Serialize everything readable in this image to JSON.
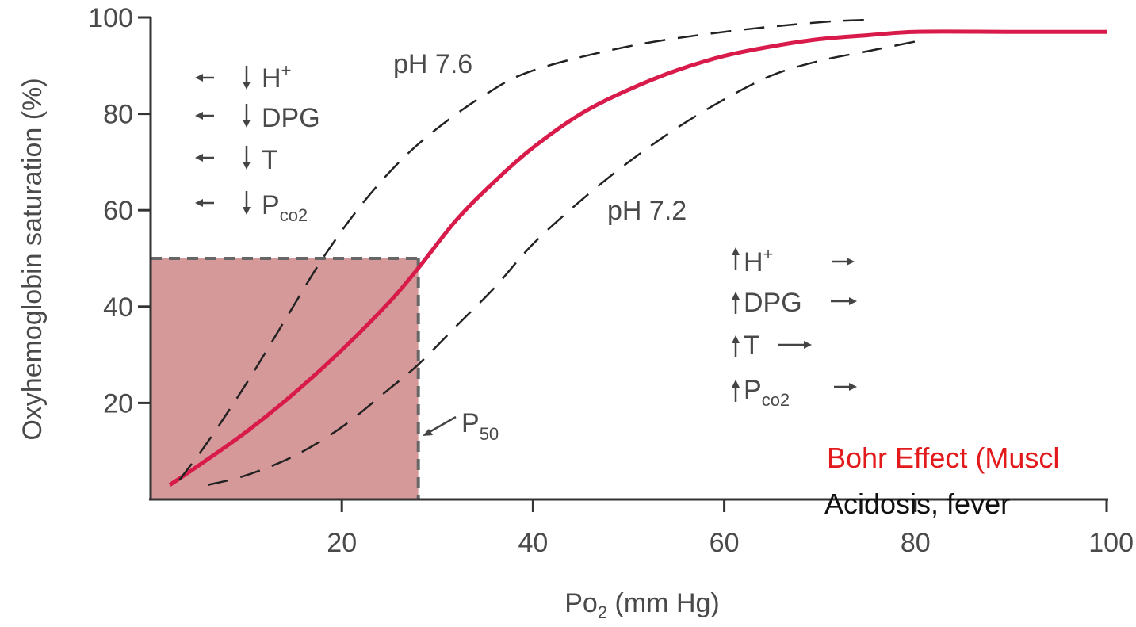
{
  "chart_data": {
    "type": "line",
    "title": "",
    "xlabel": "Po",
    "xlabel_sub": "2",
    "xlabel_suffix": " (mm Hg)",
    "ylabel": "Oxyhemoglobin saturation (%)",
    "xlim": [
      0,
      100
    ],
    "ylim": [
      0,
      100
    ],
    "x_ticks": [
      20,
      40,
      60,
      80,
      100
    ],
    "y_ticks": [
      20,
      40,
      60,
      80,
      100
    ],
    "grid": false,
    "series": [
      {
        "name": "",
        "style": "solid",
        "color": "#d81b4a",
        "x": [
          2,
          5,
          10,
          15,
          20,
          25,
          28,
          32,
          36,
          40,
          45,
          50,
          55,
          60,
          65,
          70,
          75,
          80,
          90,
          100
        ],
        "y": [
          3,
          7,
          14,
          22,
          31,
          41,
          48,
          58,
          66,
          73,
          80,
          85,
          89,
          92,
          94,
          95.5,
          96.3,
          97,
          97,
          97
        ]
      },
      {
        "name": "pH 7.6",
        "style": "dashed",
        "color": "#222222",
        "x": [
          3,
          6,
          10,
          14,
          18,
          22,
          26,
          30,
          35,
          40,
          50,
          60,
          70,
          75
        ],
        "y": [
          4,
          12,
          24,
          37,
          50,
          61,
          70,
          77,
          84,
          89,
          94,
          97,
          99,
          99.5
        ]
      },
      {
        "name": "pH 7.2",
        "style": "dashed",
        "color": "#222222",
        "x": [
          6,
          10,
          15,
          20,
          25,
          28,
          32,
          36,
          40,
          45,
          50,
          55,
          60,
          65,
          70,
          75,
          80
        ],
        "y": [
          3,
          5,
          9,
          15,
          23,
          28,
          36,
          44,
          53,
          62,
          70,
          77,
          83,
          88,
          91,
          93,
          95
        ]
      }
    ],
    "p50": {
      "x": 28,
      "y": 50,
      "color": "#d6999a"
    },
    "annotations": {
      "curve_left": "pH 7.6",
      "curve_right": "pH 7.2",
      "left_shift": [
        "H+",
        "DPG",
        "T",
        "PCO2"
      ],
      "right_shift": [
        "H+",
        "DPG",
        "T",
        "PCO2"
      ],
      "p50_label": "P",
      "p50_sub": "50",
      "co2_p": "P",
      "co2_sub": "co2",
      "h_plus": "H",
      "plus": "+",
      "dpg": "DPG",
      "t": "T"
    }
  },
  "overlay": {
    "line1": "Bohr Effect (Muscl",
    "line2": "Acidosis, fever"
  }
}
